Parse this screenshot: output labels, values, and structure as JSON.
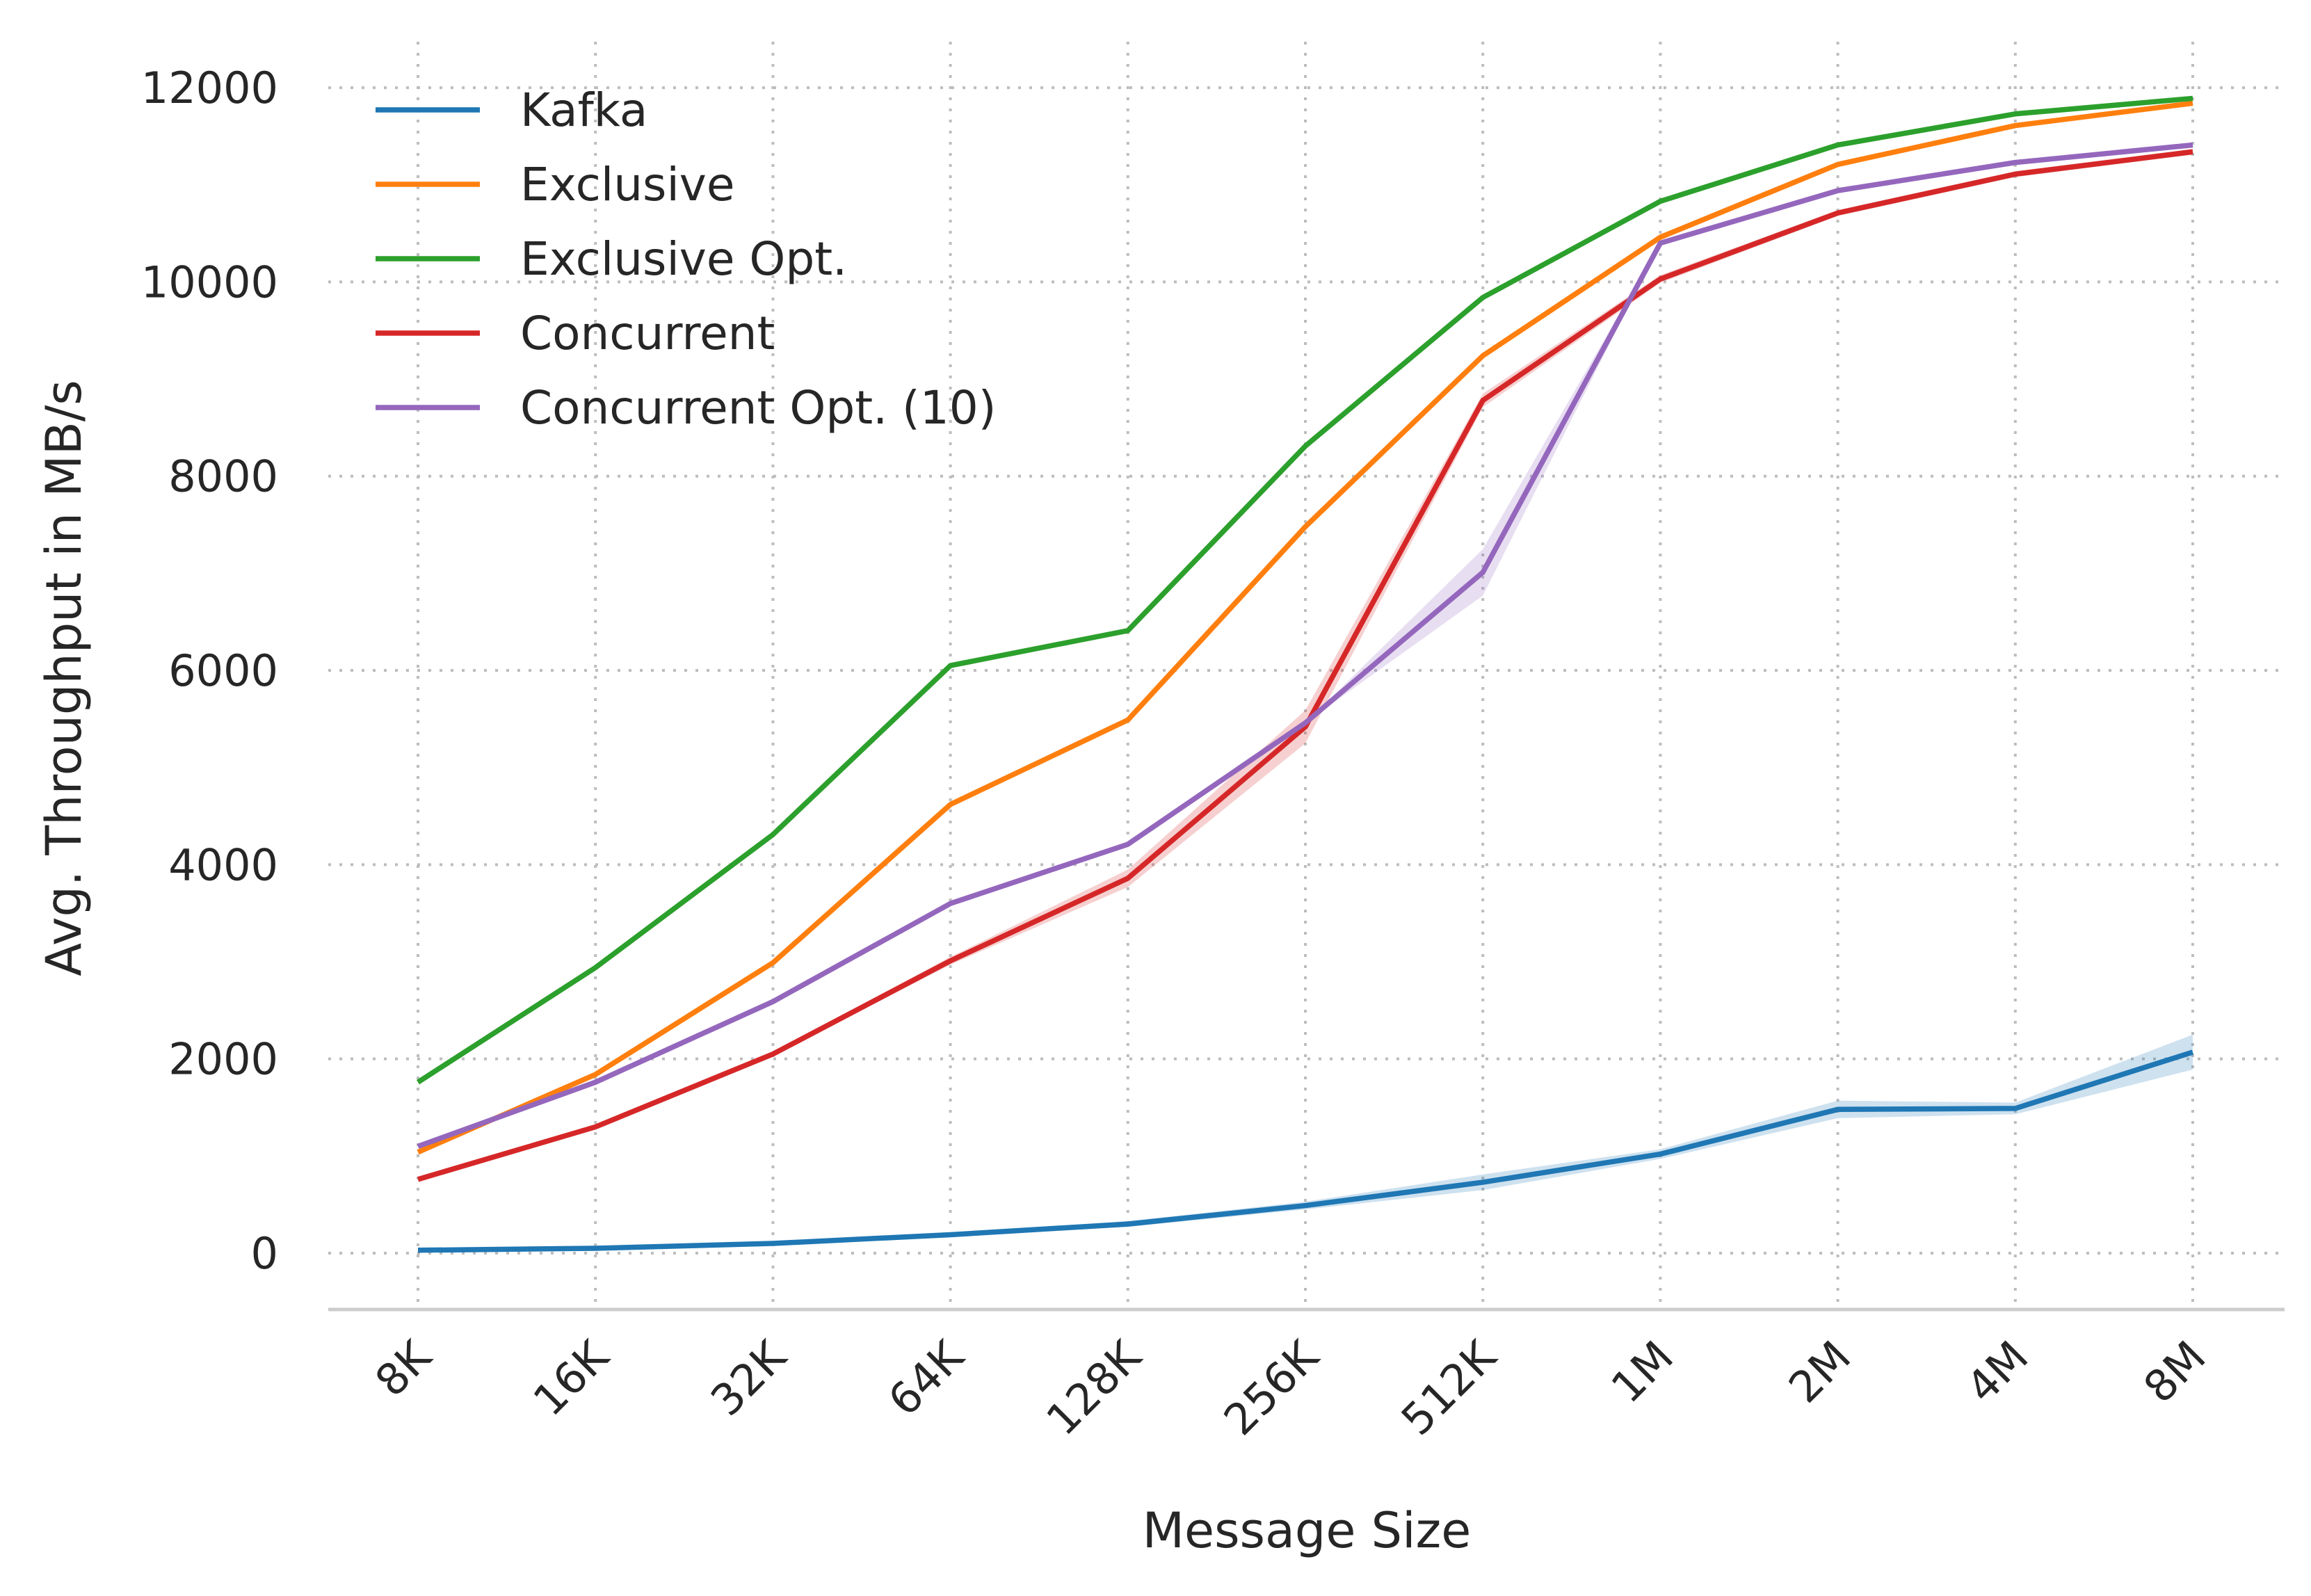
{
  "chart_data": {
    "type": "line",
    "xlabel": "Message Size",
    "ylabel": "Avg. Throughput in MB/s",
    "categories": [
      "8K",
      "16K",
      "32K",
      "64K",
      "128K",
      "256K",
      "512K",
      "1M",
      "2M",
      "4M",
      "8M"
    ],
    "ylim": [
      -550,
      12400
    ],
    "yticks": [
      0,
      2000,
      4000,
      6000,
      8000,
      10000,
      12000
    ],
    "grid": true,
    "legend_position": "top-left",
    "series": [
      {
        "name": "Kafka",
        "color": "#1f77b4",
        "values": [
          30,
          50,
          100,
          190,
          300,
          490,
          730,
          1020,
          1480,
          1490,
          2070
        ],
        "band": [
          10,
          10,
          20,
          20,
          30,
          40,
          80,
          50,
          90,
          60,
          180
        ]
      },
      {
        "name": "Exclusive",
        "color": "#ff7f0e",
        "values": [
          1040,
          1840,
          2990,
          4620,
          5490,
          7480,
          9240,
          10460,
          11210,
          11610,
          11840
        ],
        "band": [
          0,
          0,
          0,
          0,
          0,
          0,
          0,
          0,
          0,
          0,
          0
        ]
      },
      {
        "name": "Exclusive Opt.",
        "color": "#2ca02c",
        "values": [
          1760,
          2940,
          4310,
          6050,
          6410,
          8310,
          9840,
          10830,
          11410,
          11730,
          11890
        ],
        "band": [
          0,
          0,
          0,
          0,
          0,
          0,
          0,
          0,
          0,
          0,
          0
        ]
      },
      {
        "name": "Concurrent",
        "color": "#d62728",
        "values": [
          760,
          1300,
          2050,
          3010,
          3860,
          5420,
          8780,
          10030,
          10710,
          11110,
          11340
        ],
        "band": [
          0,
          0,
          20,
          40,
          90,
          170,
          70,
          40,
          30,
          30,
          30
        ]
      },
      {
        "name": "Concurrent Opt. (10)",
        "color": "#9467bd",
        "values": [
          1100,
          1760,
          2590,
          3600,
          4210,
          5460,
          7010,
          10400,
          10940,
          11230,
          11410
        ],
        "band": [
          0,
          0,
          0,
          0,
          0,
          0,
          240,
          0,
          0,
          0,
          0
        ]
      }
    ]
  }
}
